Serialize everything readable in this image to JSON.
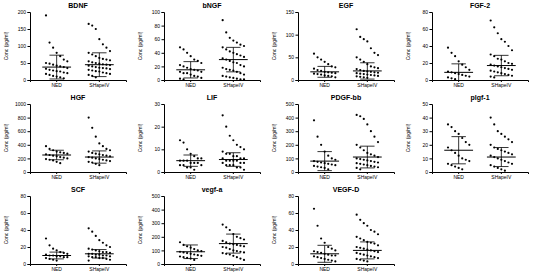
{
  "chart_data": [
    {
      "type": "scatter",
      "title": "BDNF",
      "y_label": "Conc (pg/ml)",
      "categories": [
        "NED",
        "SHapeIV"
      ],
      "color": "#000000",
      "values": [
        [
          190,
          110,
          95,
          80,
          70,
          60,
          55,
          50,
          48,
          45,
          42,
          40,
          38,
          35,
          33,
          30,
          28,
          26,
          25,
          22,
          20,
          18,
          15,
          12,
          10,
          8,
          5
        ],
        [
          165,
          160,
          150,
          120,
          105,
          95,
          85,
          80,
          75,
          70,
          65,
          62,
          60,
          58,
          55,
          52,
          50,
          48,
          46,
          45,
          44,
          42,
          40,
          38,
          36,
          35,
          34,
          32,
          30,
          28,
          26,
          25,
          22,
          20,
          18,
          15,
          12,
          8
        ]
      ],
      "means": [
        38,
        45
      ],
      "errors": [
        35,
        35
      ],
      "ylim": [
        0,
        200
      ],
      "yticks": [
        0,
        50,
        100,
        150,
        200
      ]
    },
    {
      "type": "scatter",
      "title": "bNGF",
      "y_label": "Conc (pg/ml)",
      "categories": [
        "NED",
        "SHapeIV"
      ],
      "color": "#000000",
      "values": [
        [
          48,
          45,
          40,
          35,
          30,
          28,
          25,
          22,
          20,
          18,
          16,
          15,
          14,
          12,
          12,
          10,
          10,
          8,
          6,
          5,
          3,
          2,
          1
        ],
        [
          88,
          70,
          62,
          58,
          55,
          52,
          50,
          48,
          45,
          42,
          40,
          38,
          36,
          34,
          32,
          30,
          28,
          26,
          25,
          22,
          20,
          18,
          16,
          15,
          14,
          12,
          10,
          8,
          6,
          5,
          4,
          3,
          2,
          1,
          1
        ]
      ],
      "means": [
        15,
        30
      ],
      "errors": [
        12,
        18
      ],
      "ylim": [
        0,
        100
      ],
      "yticks": [
        0,
        20,
        40,
        60,
        80,
        100
      ]
    },
    {
      "type": "scatter",
      "title": "EGF",
      "y_label": "Conc (pg/ml)",
      "categories": [
        "NED",
        "SHapeIV"
      ],
      "color": "#000000",
      "values": [
        [
          58,
          50,
          45,
          40,
          35,
          30,
          28,
          25,
          22,
          20,
          18,
          17,
          16,
          15,
          14,
          13,
          12,
          10,
          9,
          8,
          6
        ],
        [
          112,
          95,
          90,
          85,
          70,
          60,
          55,
          50,
          45,
          40,
          35,
          30,
          28,
          26,
          24,
          22,
          20,
          19,
          18,
          17,
          16,
          15,
          14,
          13,
          12,
          11,
          10,
          9,
          8,
          7,
          6,
          5
        ]
      ],
      "means": [
        18,
        20
      ],
      "errors": [
        12,
        18
      ],
      "ylim": [
        0,
        150
      ],
      "yticks": [
        0,
        50,
        100,
        150
      ]
    },
    {
      "type": "scatter",
      "title": "FGF-2",
      "y_label": "Conc (pg/ml)",
      "categories": [
        "NED",
        "SHapeIV"
      ],
      "color": "#000000",
      "values": [
        [
          38,
          32,
          28,
          22,
          18,
          15,
          12,
          10,
          9,
          8,
          7,
          6,
          5,
          4,
          3,
          2,
          1
        ],
        [
          70,
          62,
          55,
          48,
          45,
          40,
          35,
          30,
          28,
          25,
          24,
          22,
          20,
          19,
          18,
          17,
          16,
          15,
          14,
          13,
          12,
          11,
          10,
          9,
          8,
          7,
          6,
          5,
          4,
          3
        ]
      ],
      "means": [
        9,
        17
      ],
      "errors": [
        10,
        12
      ],
      "ylim": [
        0,
        80
      ],
      "yticks": [
        0,
        20,
        40,
        60,
        80
      ]
    },
    {
      "type": "scatter",
      "title": "HGF",
      "y_label": "Conc (pg/ml)",
      "categories": [
        "NED",
        "SHapeIV"
      ],
      "color": "#000000",
      "values": [
        [
          380,
          340,
          320,
          300,
          290,
          280,
          270,
          260,
          250,
          240,
          230,
          220,
          210,
          200,
          190,
          180,
          170,
          150,
          130
        ],
        [
          800,
          650,
          520,
          420,
          380,
          340,
          320,
          300,
          280,
          270,
          260,
          250,
          240,
          230,
          220,
          210,
          200,
          190,
          180,
          170,
          160,
          150,
          140,
          120,
          100
        ]
      ],
      "means": [
        250,
        220
      ],
      "errors": [
        70,
        90
      ],
      "ylim": [
        0,
        1000
      ],
      "yticks": [
        0,
        200,
        400,
        600,
        800,
        1000
      ]
    },
    {
      "type": "scatter",
      "title": "LIF",
      "y_label": "Conc (pg/ml)",
      "categories": [
        "NED",
        "SHapeIV"
      ],
      "color": "#000000",
      "values": [
        [
          14,
          13,
          10,
          8,
          7,
          6,
          6,
          5,
          5,
          5,
          4,
          4,
          4,
          3,
          3,
          3,
          2,
          2,
          1
        ],
        [
          25,
          20,
          16,
          14,
          12,
          11,
          10,
          9,
          8,
          8,
          7,
          7,
          6,
          6,
          6,
          5,
          5,
          5,
          5,
          4,
          4,
          4,
          3,
          3,
          3,
          2,
          2,
          1
        ]
      ],
      "means": [
        5,
        5.5
      ],
      "errors": [
        2.5,
        3
      ],
      "ylim": [
        0,
        30
      ],
      "yticks": [
        0,
        10,
        20,
        30
      ]
    },
    {
      "type": "scatter",
      "title": "PDGF-bb",
      "y_label": "Conc (pg/ml)",
      "categories": [
        "NED",
        "SHapeIV"
      ],
      "color": "#000000",
      "values": [
        [
          380,
          260,
          200,
          150,
          120,
          100,
          90,
          80,
          75,
          70,
          65,
          60,
          55,
          50,
          45,
          40,
          35,
          30,
          20
        ],
        [
          420,
          410,
          390,
          350,
          300,
          260,
          220,
          200,
          180,
          160,
          140,
          130,
          120,
          110,
          100,
          95,
          90,
          85,
          80,
          75,
          70,
          65,
          60,
          55,
          50,
          45,
          40,
          35,
          30,
          20
        ]
      ],
      "means": [
        80,
        110
      ],
      "errors": [
        70,
        80
      ],
      "ylim": [
        0,
        500
      ],
      "yticks": [
        0,
        100,
        200,
        300,
        400,
        500
      ]
    },
    {
      "type": "scatter",
      "title": "plgf-1",
      "y_label": "Conc (pg/ml)",
      "categories": [
        "NED",
        "SHapeIV"
      ],
      "color": "#000000",
      "values": [
        [
          35,
          33,
          30,
          28,
          25,
          22,
          20,
          18,
          16,
          14,
          12,
          10,
          9,
          8,
          6,
          5,
          4,
          3,
          2
        ],
        [
          40,
          35,
          30,
          28,
          26,
          24,
          22,
          20,
          18,
          17,
          16,
          15,
          14,
          13,
          12,
          11,
          10,
          9,
          8,
          7,
          6,
          5,
          4,
          3,
          2,
          1
        ]
      ],
      "means": [
        16,
        11
      ],
      "errors": [
        10,
        7
      ],
      "ylim": [
        0,
        50
      ],
      "yticks": [
        0,
        10,
        20,
        30,
        40,
        50
      ]
    },
    {
      "type": "scatter",
      "title": "SCF",
      "y_label": "Conc (pg/ml)",
      "categories": [
        "NED",
        "SHapeIV"
      ],
      "color": "#000000",
      "values": [
        [
          30,
          22,
          18,
          16,
          14,
          13,
          12,
          11,
          10,
          10,
          9,
          9,
          8,
          8,
          7,
          6,
          5,
          4
        ],
        [
          42,
          38,
          33,
          28,
          25,
          22,
          20,
          18,
          17,
          16,
          15,
          14,
          14,
          13,
          12,
          12,
          11,
          11,
          10,
          10,
          9,
          9,
          8,
          8,
          7,
          7,
          6,
          5,
          4
        ]
      ],
      "means": [
        10,
        12
      ],
      "errors": [
        4,
        5
      ],
      "ylim": [
        0,
        80
      ],
      "yticks": [
        0,
        20,
        40,
        60,
        80
      ]
    },
    {
      "type": "scatter",
      "title": "vegf-a",
      "y_label": "Conc (pg/ml)",
      "categories": [
        "NED",
        "SHapeIV"
      ],
      "color": "#000000",
      "values": [
        [
          160,
          140,
          130,
          120,
          110,
          100,
          95,
          90,
          85,
          80,
          75,
          70,
          65,
          60,
          55,
          50,
          45,
          40,
          30
        ],
        [
          290,
          270,
          250,
          220,
          200,
          190,
          180,
          170,
          160,
          150,
          145,
          140,
          135,
          130,
          125,
          120,
          110,
          100,
          95,
          90,
          85,
          80,
          75,
          70,
          60,
          50,
          40,
          30
        ]
      ],
      "means": [
        90,
        150
      ],
      "errors": [
        50,
        70
      ],
      "ylim": [
        0,
        500
      ],
      "yticks": [
        0,
        100,
        200,
        300,
        400,
        500
      ]
    },
    {
      "type": "scatter",
      "title": "VEGF-D",
      "y_label": "Conc (pg/ml)",
      "categories": [
        "NED",
        "SHapeIV"
      ],
      "color": "#000000",
      "values": [
        [
          65,
          45,
          30,
          25,
          20,
          18,
          16,
          15,
          14,
          13,
          12,
          11,
          10,
          10,
          9,
          8,
          7,
          6,
          5,
          4,
          3
        ],
        [
          58,
          52,
          48,
          45,
          40,
          38,
          35,
          32,
          30,
          28,
          26,
          25,
          24,
          22,
          20,
          19,
          18,
          17,
          16,
          15,
          14,
          13,
          12,
          11,
          10,
          9,
          8,
          7,
          6,
          5,
          4,
          3
        ]
      ],
      "means": [
        12,
        16
      ],
      "errors": [
        10,
        10
      ],
      "ylim": [
        0,
        80
      ],
      "yticks": [
        0,
        20,
        40,
        60,
        80
      ]
    }
  ]
}
